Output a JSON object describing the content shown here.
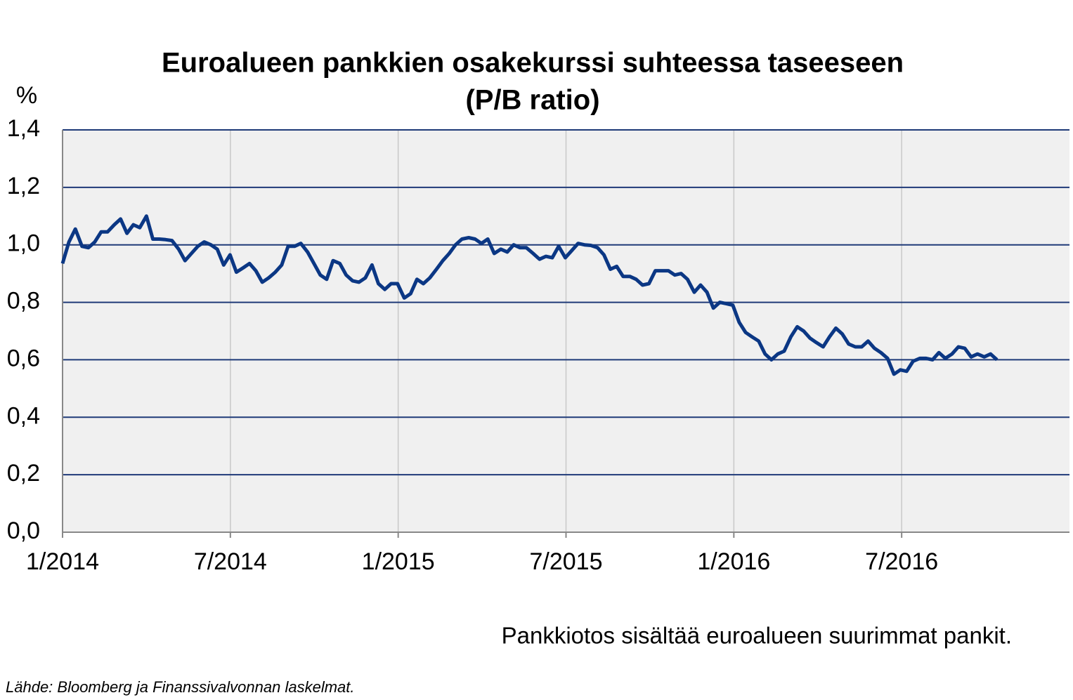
{
  "chart_data": {
    "type": "line",
    "title": "Euroalueen pankkien osakekurssi suhteessa taseeseen",
    "subtitle": "(P/B ratio)",
    "y_label": "%",
    "note": "Pankkiotos sisältää euroalueen suurimmat pankit.",
    "source": "Lähde: Bloomberg ja Finanssivalvonnan laskelmat.",
    "xlim": [
      2014,
      2017
    ],
    "xticks": [
      {
        "value": 2014,
        "label": "1/2014"
      },
      {
        "value": 2014.5,
        "label": "7/2014"
      },
      {
        "value": 2015,
        "label": "1/2015"
      },
      {
        "value": 2015.5,
        "label": "7/2015"
      },
      {
        "value": 2016,
        "label": "1/2016"
      },
      {
        "value": 2016.5,
        "label": "7/2016"
      }
    ],
    "ylim": [
      0,
      1.4
    ],
    "yticks": [
      {
        "value": 0,
        "label": "0,0"
      },
      {
        "value": 0.2,
        "label": "0,2"
      },
      {
        "value": 0.4,
        "label": "0,4"
      },
      {
        "value": 0.6,
        "label": "0,6"
      },
      {
        "value": 0.8,
        "label": "0,8"
      },
      {
        "value": 1.0,
        "label": "1,0"
      },
      {
        "value": 1.2,
        "label": "1,2"
      },
      {
        "value": 1.4,
        "label": "1,4"
      }
    ],
    "grid": true,
    "x": [
      2014.0,
      2014.019,
      2014.038,
      2014.058,
      2014.077,
      2014.096,
      2014.115,
      2014.134,
      2014.154,
      2014.173,
      2014.192,
      2014.211,
      2014.23,
      2014.25,
      2014.269,
      2014.288,
      2014.307,
      2014.326,
      2014.346,
      2014.365,
      2014.384,
      2014.403,
      2014.422,
      2014.442,
      2014.461,
      2014.48,
      2014.499,
      2014.518,
      2014.538,
      2014.557,
      2014.576,
      2014.595,
      2014.614,
      2014.634,
      2014.653,
      2014.672,
      2014.691,
      2014.71,
      2014.73,
      2014.749,
      2014.768,
      2014.787,
      2014.806,
      2014.826,
      2014.845,
      2014.864,
      2014.883,
      2014.902,
      2014.922,
      2014.941,
      2014.96,
      2014.979,
      2014.998,
      2015.018,
      2015.037,
      2015.056,
      2015.075,
      2015.094,
      2015.114,
      2015.133,
      2015.152,
      2015.171,
      2015.19,
      2015.21,
      2015.229,
      2015.248,
      2015.267,
      2015.286,
      2015.306,
      2015.325,
      2015.344,
      2015.363,
      2015.382,
      2015.402,
      2015.421,
      2015.44,
      2015.459,
      2015.478,
      2015.498,
      2015.517,
      2015.536,
      2015.555,
      2015.574,
      2015.594,
      2015.613,
      2015.632,
      2015.651,
      2015.67,
      2015.69,
      2015.709,
      2015.728,
      2015.747,
      2015.766,
      2015.786,
      2015.805,
      2015.824,
      2015.843,
      2015.862,
      2015.882,
      2015.901,
      2015.92,
      2015.939,
      2015.958,
      2015.978,
      2015.997,
      2016.016,
      2016.035,
      2016.054,
      2016.074,
      2016.093,
      2016.112,
      2016.131,
      2016.15,
      2016.17,
      2016.189,
      2016.208,
      2016.227,
      2016.246,
      2016.266,
      2016.285,
      2016.304,
      2016.323,
      2016.342,
      2016.362,
      2016.381,
      2016.4,
      2016.419,
      2016.438,
      2016.458,
      2016.477,
      2016.496,
      2016.515,
      2016.534,
      2016.554,
      2016.573,
      2016.592,
      2016.611,
      2016.63,
      2016.65,
      2016.669,
      2016.688,
      2016.707,
      2016.726,
      2016.746,
      2016.765,
      2016.784
    ],
    "series": [
      {
        "color": "#0b3784",
        "values": [
          0.935,
          1.01,
          1.055,
          0.995,
          0.99,
          1.01,
          1.045,
          1.045,
          1.07,
          1.09,
          1.04,
          1.07,
          1.06,
          1.1,
          1.02,
          1.02,
          1.018,
          1.015,
          0.985,
          0.945,
          0.97,
          0.995,
          1.01,
          1.0,
          0.985,
          0.93,
          0.965,
          0.905,
          0.92,
          0.935,
          0.91,
          0.87,
          0.885,
          0.905,
          0.93,
          0.995,
          0.995,
          1.005,
          0.975,
          0.935,
          0.895,
          0.88,
          0.945,
          0.935,
          0.895,
          0.875,
          0.87,
          0.885,
          0.93,
          0.865,
          0.845,
          0.865,
          0.865,
          0.815,
          0.83,
          0.88,
          0.865,
          0.885,
          0.915,
          0.945,
          0.97,
          1.0,
          1.02,
          1.025,
          1.02,
          1.005,
          1.02,
          0.97,
          0.985,
          0.975,
          1.0,
          0.99,
          0.99,
          0.97,
          0.95,
          0.96,
          0.955,
          0.995,
          0.955,
          0.98,
          1.005,
          1.0,
          0.998,
          0.99,
          0.965,
          0.915,
          0.925,
          0.89,
          0.89,
          0.88,
          0.86,
          0.865,
          0.91,
          0.91,
          0.91,
          0.895,
          0.9,
          0.88,
          0.835,
          0.86,
          0.835,
          0.78,
          0.8,
          0.795,
          0.79,
          0.73,
          0.695,
          0.68,
          0.665,
          0.62,
          0.6,
          0.62,
          0.63,
          0.68,
          0.715,
          0.7,
          0.675,
          0.66,
          0.645,
          0.68,
          0.71,
          0.69,
          0.655,
          0.645,
          0.645,
          0.665,
          0.64,
          0.625,
          0.605,
          0.55,
          0.565,
          0.56,
          0.595,
          0.605,
          0.605,
          0.6,
          0.625,
          0.605,
          0.62,
          0.645,
          0.64,
          0.61,
          0.62,
          0.61,
          0.62,
          0.6
        ]
      }
    ]
  }
}
